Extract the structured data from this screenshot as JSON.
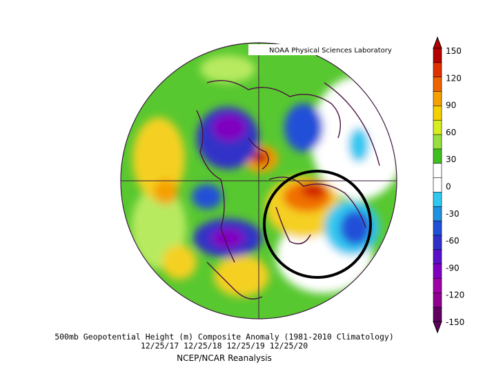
{
  "lab_label": "NOAA Physical Sciences Laboratory",
  "caption_line1": "500mb Geopotential Height (m) Composite Anomaly (1981-2010 Climatology)",
  "caption_line2": "12/25/17 12/25/18 12/25/19 12/25/20",
  "caption_line3": "NCEP/NCAR Reanalysis",
  "colorbar": {
    "ticks": [
      "150",
      "120",
      "90",
      "60",
      "30",
      "0",
      "-30",
      "-60",
      "-90",
      "-120",
      "-150"
    ],
    "colors": [
      "#b40000",
      "#e03000",
      "#f06400",
      "#f5a000",
      "#f5d000",
      "#d8ee20",
      "#98e040",
      "#40c020",
      "#ffffff",
      "#ffffff",
      "#30c8f0",
      "#2090e0",
      "#2050d8",
      "#3030c8",
      "#5a10c8",
      "#8000c0",
      "#a000a8",
      "#900090",
      "#600060"
    ]
  },
  "highlight": {
    "shape": "circle",
    "color": "#000000"
  }
}
